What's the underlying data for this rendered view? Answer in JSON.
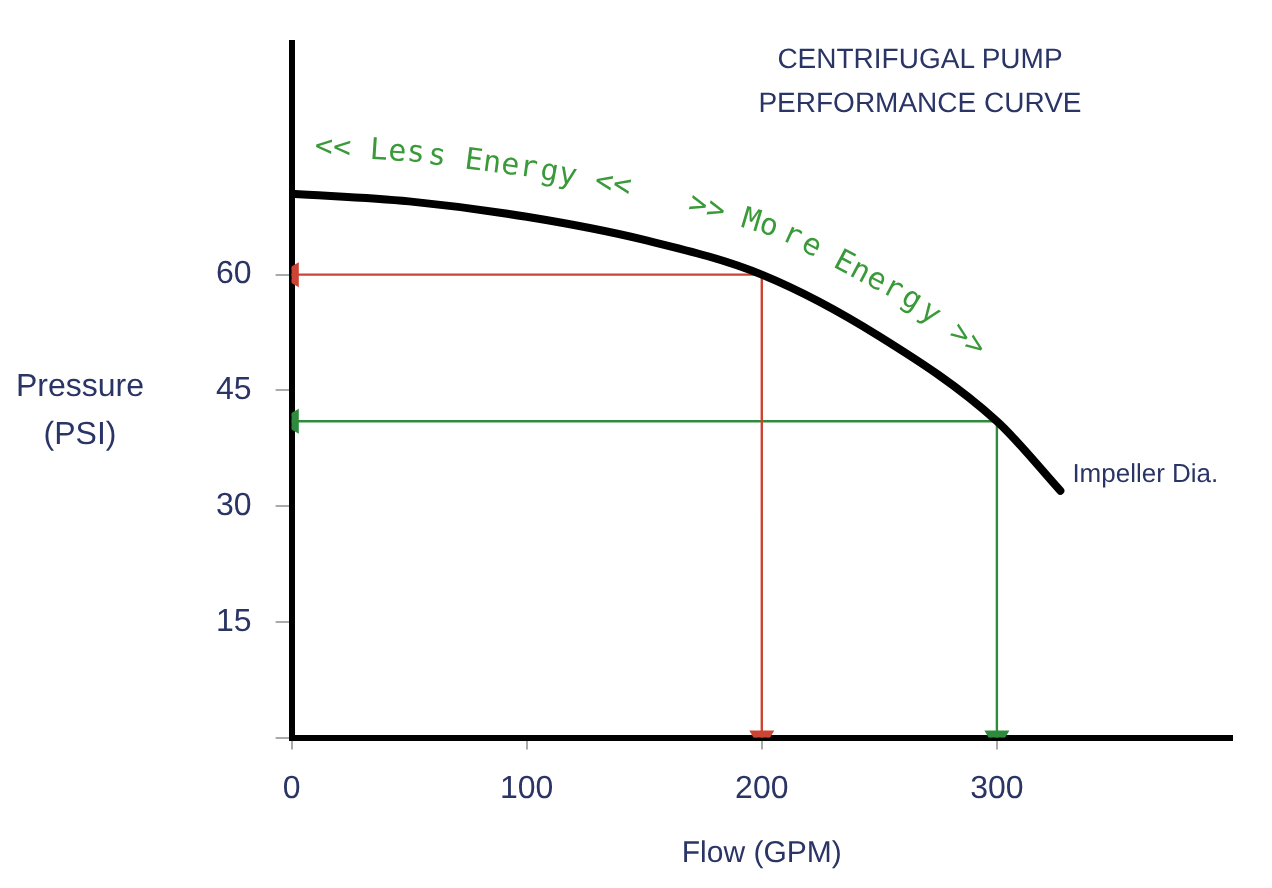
{
  "chart_data": {
    "type": "line",
    "title": "CENTRIFUGAL PUMP PERFORMANCE CURVE",
    "xlabel": "Flow (GPM)",
    "ylabel": "Pressure (PSI)",
    "xlim": [
      0,
      400
    ],
    "xticks": [
      0,
      100,
      200,
      300
    ],
    "ylim": [
      0,
      90
    ],
    "yticks": [
      {
        "value": 0,
        "label": null
      },
      15,
      30,
      45,
      60
    ],
    "series": [
      {
        "color": "#000000",
        "x": [
          0,
          50,
          100,
          150,
          200,
          250,
          300,
          327
        ],
        "values": [
          70.5,
          69.5,
          67.5,
          64.5,
          60,
          52,
          41,
          32
        ]
      },
      {
        "color": "#cc4433",
        "marker": "triangle",
        "x": [
          0,
          200,
          200
        ],
        "values": [
          60,
          60,
          0
        ]
      },
      {
        "color": "#2e8b3e",
        "marker": "triangle",
        "x": [
          0,
          300,
          300
        ],
        "values": [
          41,
          41,
          0
        ]
      }
    ],
    "annotations": [
      "<< Less Energy <<   >> More Energy >>",
      {
        "text": "Impeller Dia.",
        "x": 327,
        "y": 32
      }
    ],
    "grid": false,
    "legend": false,
    "marker": "none",
    "line_style": "solid"
  }
}
